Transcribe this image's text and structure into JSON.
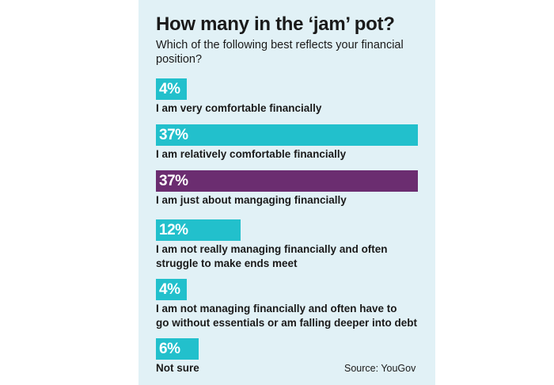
{
  "colors": {
    "primary": "#22c0cc",
    "highlight": "#6b2d70",
    "background": "#e1f1f6"
  },
  "title": "How many in the ‘jam’ pot?",
  "subtitle": "Which of the following best reflects your financial position?",
  "source": "Source: YouGov",
  "chart_data": {
    "type": "bar",
    "orientation": "horizontal",
    "title": "How many in the ‘jam’ pot?",
    "subtitle": "Which of the following best reflects your financial position?",
    "unit": "%",
    "categories": [
      "I am very comfortable financially",
      "I am relatively comfortable financially",
      "I am just about mangaging financially",
      "I am not really managing financially and often struggle to make ends meet",
      "I am not managing financially and often have to go without essentials or am falling deeper into debt",
      "Not sure"
    ],
    "values": [
      4,
      37,
      37,
      12,
      4,
      6
    ],
    "value_labels": [
      "4%",
      "37%",
      "37%",
      "12%",
      "4%",
      "6%"
    ],
    "highlighted_index": 2,
    "legend": "none",
    "grid": false
  }
}
